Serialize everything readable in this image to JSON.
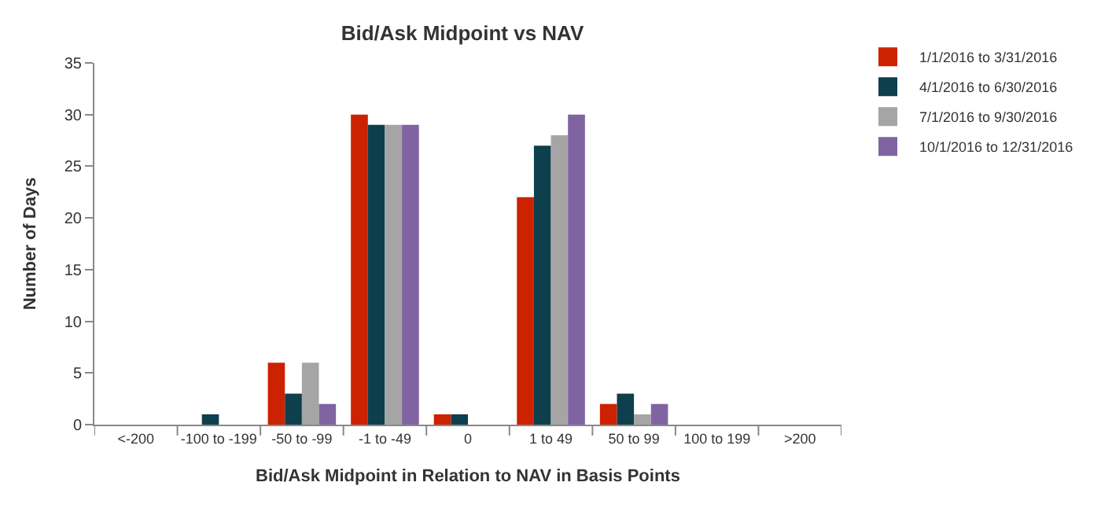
{
  "chart_data": {
    "type": "bar",
    "title": "Bid/Ask Midpoint vs NAV",
    "xlabel": "Bid/Ask Midpoint in Relation to NAV in Basis Points",
    "ylabel": "Number of Days",
    "categories": [
      "<-200",
      "-100 to -199",
      "-50 to -99",
      "-1 to -49",
      "0",
      "1 to 49",
      "50 to 99",
      "100 to 199",
      ">200"
    ],
    "series": [
      {
        "name": "1/1/2016 to 3/31/2016",
        "color": "#cc2200",
        "values": [
          0,
          0,
          6,
          30,
          1,
          22,
          2,
          0,
          0
        ]
      },
      {
        "name": "4/1/2016 to 6/30/2016",
        "color": "#0e3f4c",
        "values": [
          0,
          1,
          3,
          29,
          1,
          27,
          3,
          0,
          0
        ]
      },
      {
        "name": "7/1/2016 to 9/30/2016",
        "color": "#a5a5a5",
        "values": [
          0,
          0,
          6,
          29,
          0,
          28,
          1,
          0,
          0
        ]
      },
      {
        "name": "10/1/2016 to 12/31/2016",
        "color": "#8064a2",
        "values": [
          0,
          0,
          2,
          29,
          0,
          30,
          2,
          0,
          0
        ]
      }
    ],
    "ylim": [
      0,
      35
    ],
    "yticks": [
      0,
      5,
      10,
      15,
      20,
      25,
      30,
      35
    ],
    "grid": false,
    "legend": "top right"
  }
}
